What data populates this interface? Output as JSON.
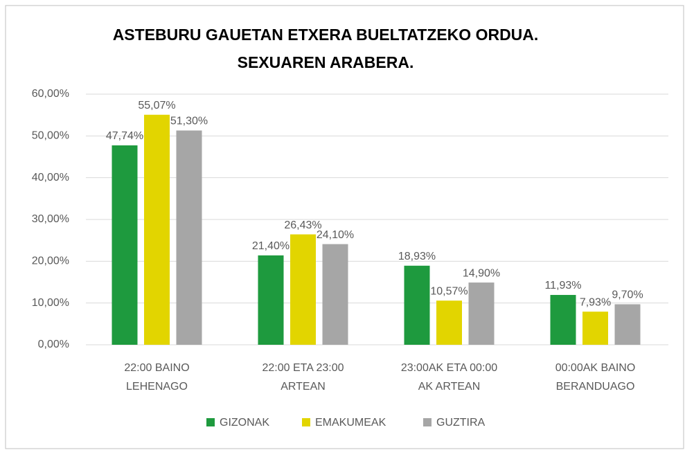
{
  "chart_data": {
    "type": "bar",
    "title": [
      "ASTEBURU GAUETAN ETXERA BUELTATZEKO ORDUA.",
      "SEXUAREN ARABERA."
    ],
    "categories": [
      [
        "22:00 BAINO",
        "LEHENAGO"
      ],
      [
        "22:00 ETA 23:00",
        "ARTEAN"
      ],
      [
        "23:00AK ETA 00:00",
        "AK ARTEAN"
      ],
      [
        "00:00AK BAINO",
        "BERANDUAGO"
      ]
    ],
    "series": [
      {
        "name": "GIZONAK",
        "color": "#1e9a3e",
        "values": [
          47.74,
          21.4,
          18.93,
          11.93
        ],
        "value_labels": [
          "47,74%",
          "21,40%",
          "18,93%",
          "11,93%"
        ]
      },
      {
        "name": "EMAKUMEAK",
        "color": "#e2d500",
        "values": [
          55.07,
          26.43,
          10.57,
          7.93
        ],
        "value_labels": [
          "55,07%",
          "26,43%",
          "10,57%",
          "7,93%"
        ]
      },
      {
        "name": "GUZTIRA",
        "color": "#a6a6a6",
        "values": [
          51.3,
          24.1,
          14.9,
          9.7
        ],
        "value_labels": [
          "51,30%",
          "24,10%",
          "14,90%",
          "9,70%"
        ]
      }
    ],
    "ylim": [
      0,
      60
    ],
    "yticks": [
      {
        "value": 0,
        "label": "0,00%"
      },
      {
        "value": 10,
        "label": "10,00%"
      },
      {
        "value": 20,
        "label": "20,00%"
      },
      {
        "value": 30,
        "label": "30,00%"
      },
      {
        "value": 40,
        "label": "40,00%"
      },
      {
        "value": 50,
        "label": "50,00%"
      },
      {
        "value": 60,
        "label": "60,00%"
      }
    ],
    "grid": true,
    "legend": "bottom"
  }
}
